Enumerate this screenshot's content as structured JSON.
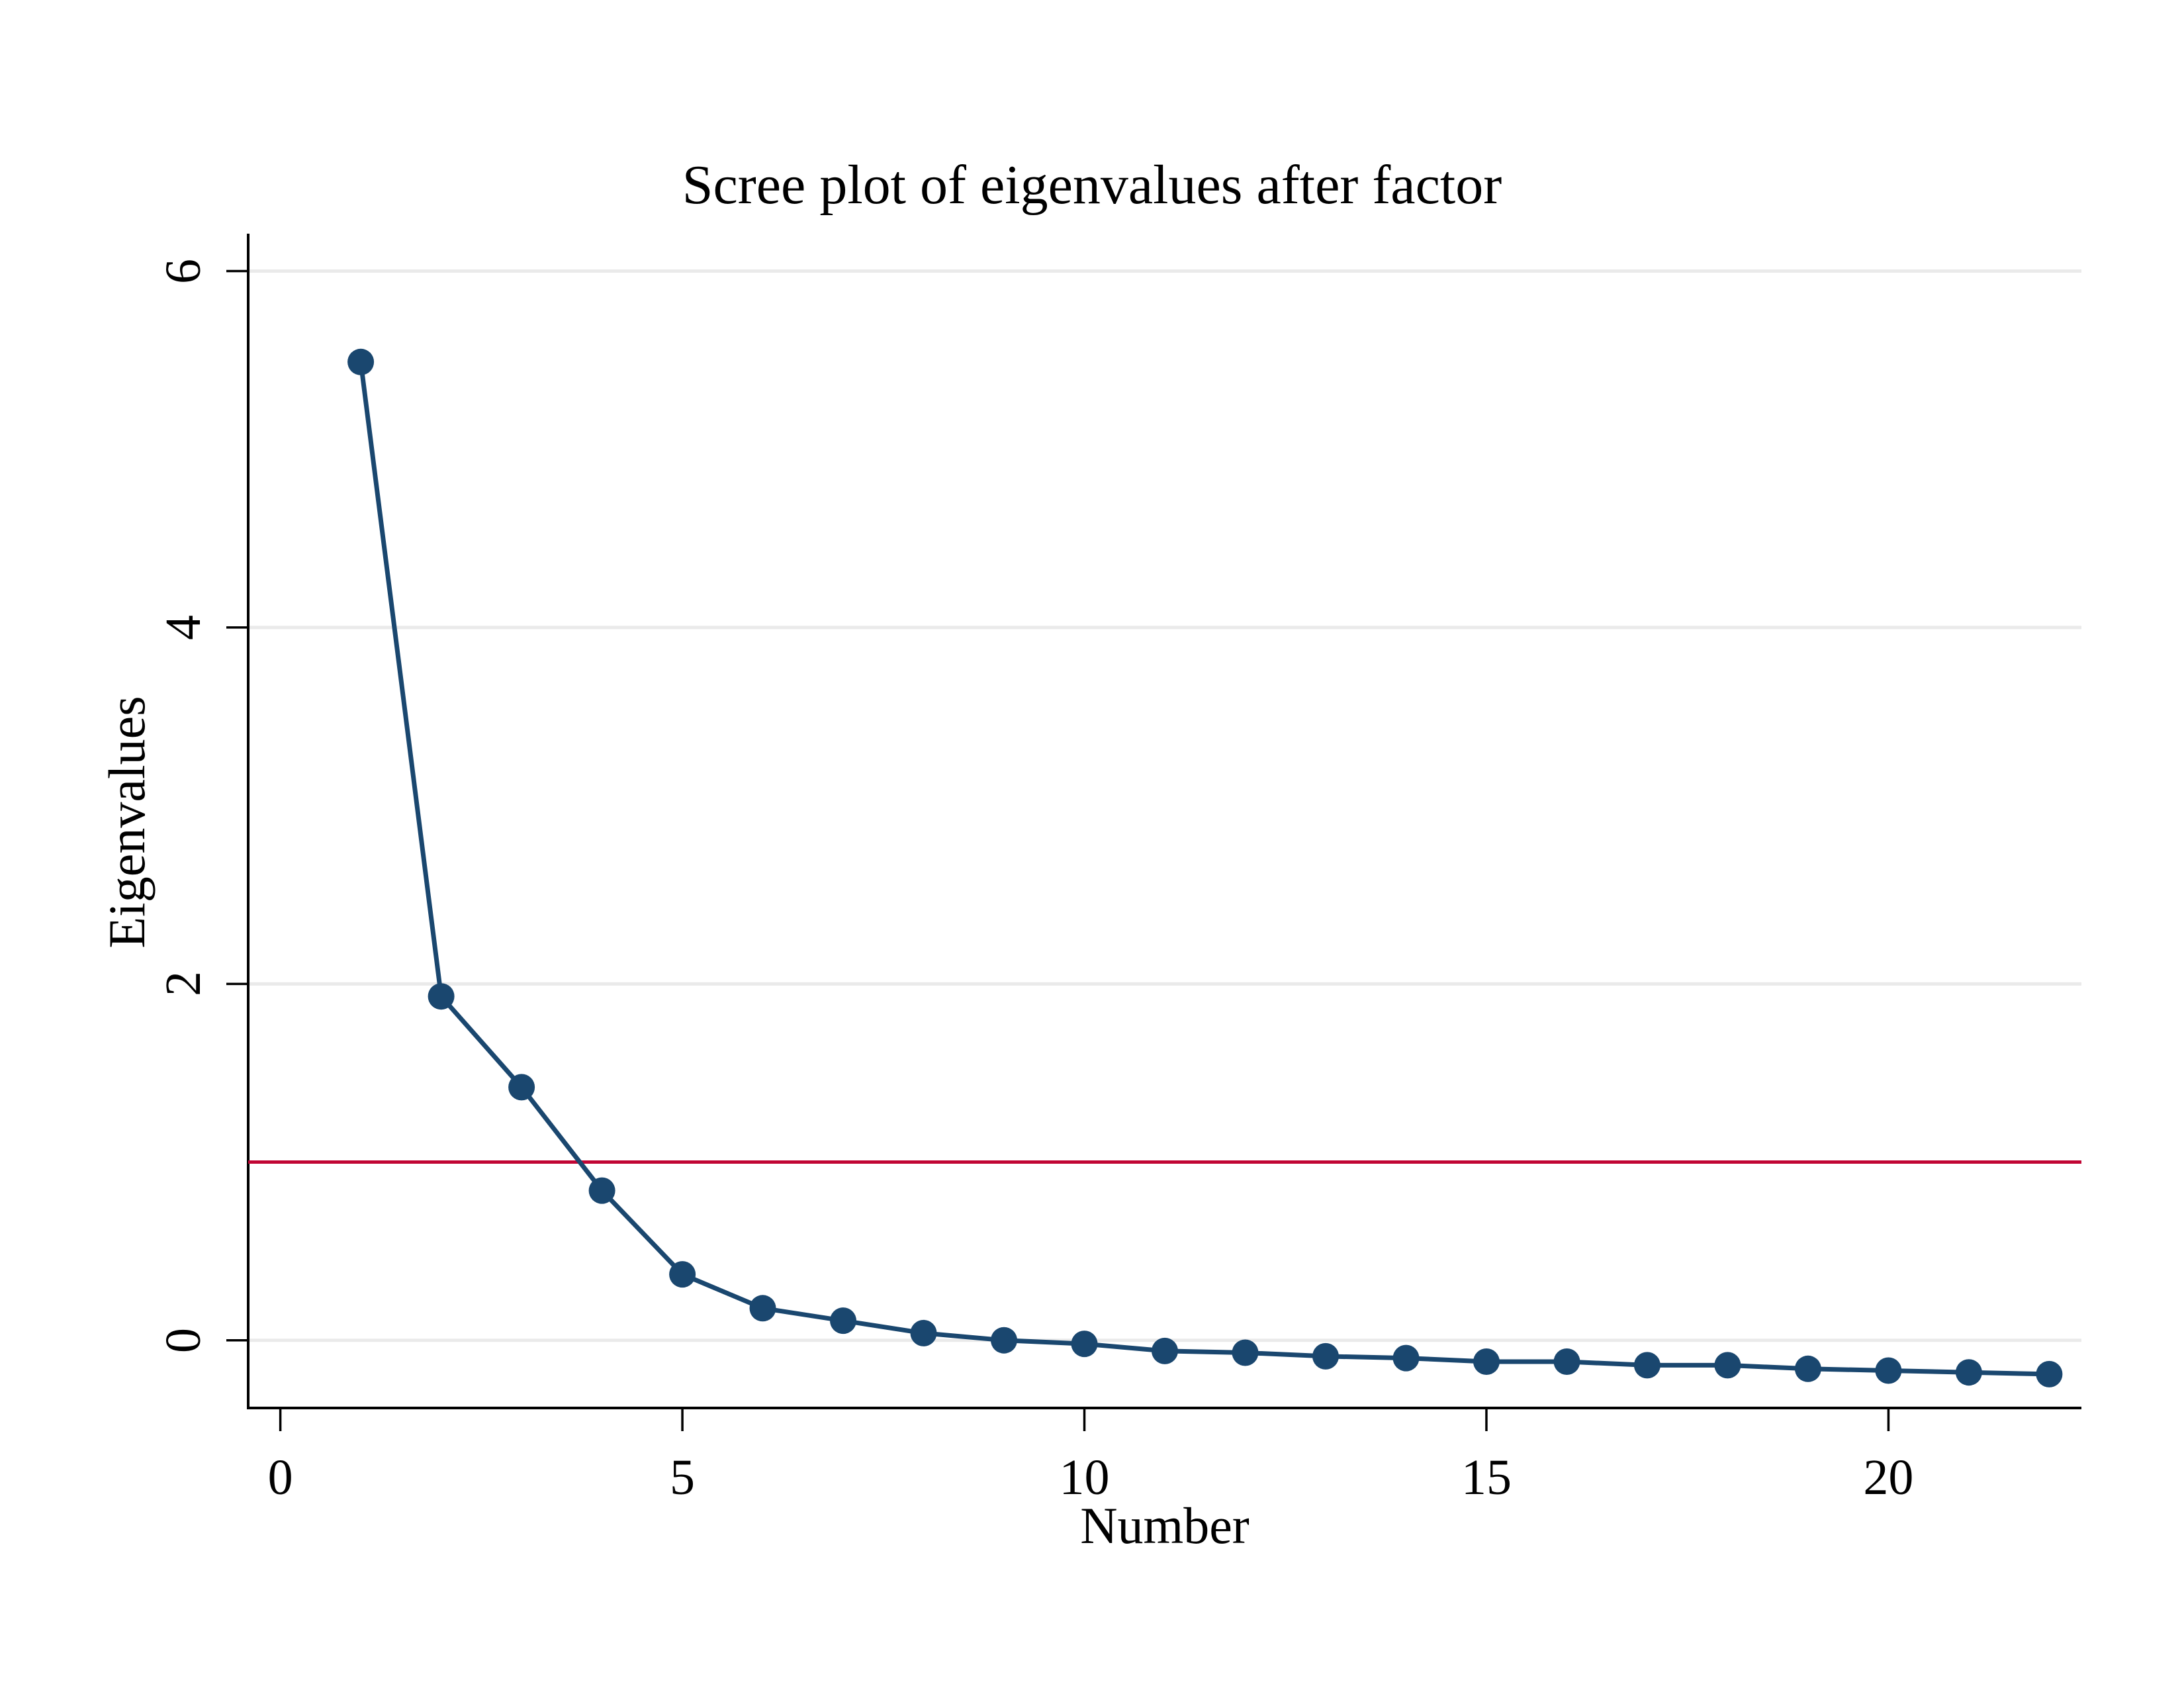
{
  "chart_data": {
    "type": "line",
    "title": "Scree plot of eigenvalues after factor",
    "xlabel": "Number",
    "ylabel": "Eigenvalues",
    "series": [
      {
        "name": "Eigenvalues",
        "marker": "circle",
        "color": "#1a476f",
        "x": [
          1,
          2,
          3,
          4,
          5,
          6,
          7,
          8,
          9,
          10,
          11,
          12,
          13,
          14,
          15,
          16,
          17,
          18,
          19,
          20,
          21,
          22
        ],
        "y": [
          5.49,
          1.93,
          1.42,
          0.84,
          0.37,
          0.18,
          0.11,
          0.04,
          0.0,
          -0.02,
          -0.06,
          -0.07,
          -0.09,
          -0.1,
          -0.12,
          -0.12,
          -0.14,
          -0.14,
          -0.16,
          -0.17,
          -0.18,
          -0.19
        ]
      }
    ],
    "reference_line": {
      "y": 1,
      "color": "#c10534"
    },
    "x_ticks": [
      0,
      5,
      10,
      15,
      20
    ],
    "y_ticks": [
      0,
      2,
      4,
      6
    ],
    "xlim": [
      -0.4,
      22.4
    ],
    "ylim": [
      -0.38,
      6.21
    ],
    "grid": "horizontal-y-only",
    "legend": "none",
    "gridline_color": "#eaeaea",
    "axis_color": "#000000",
    "text_color": "#000000",
    "background": "#ffffff"
  }
}
